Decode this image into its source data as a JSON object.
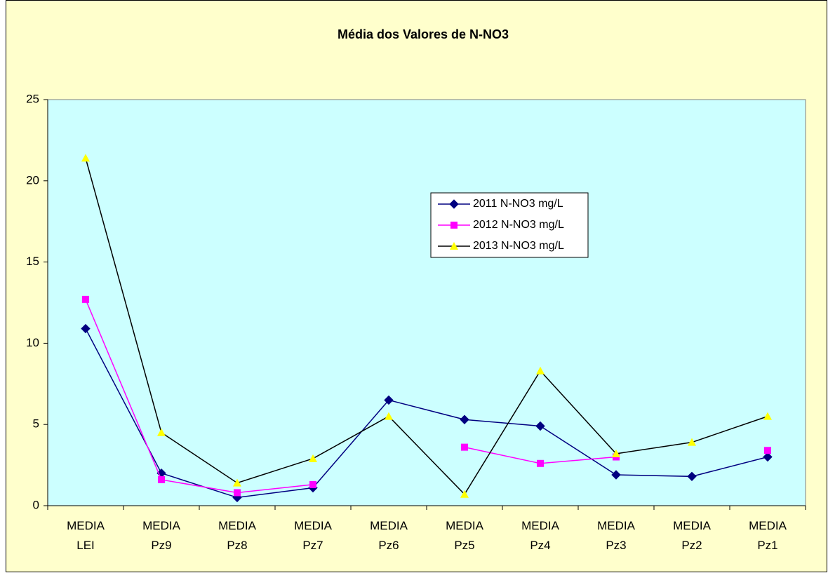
{
  "chart_data": {
    "type": "line",
    "title": "Média dos Valores de N-NO3",
    "categories": [
      "MEDIA LEI",
      "MEDIA Pz9",
      "MEDIA Pz8",
      "MEDIA Pz7",
      "MEDIA Pz6",
      "MEDIA Pz5",
      "MEDIA Pz4",
      "MEDIA Pz3",
      "MEDIA Pz2",
      "MEDIA Pz1"
    ],
    "series": [
      {
        "name": "2011 N-NO3 mg/L",
        "color": "#000080",
        "marker_color": "#000080",
        "marker": "diamond",
        "values": [
          10.9,
          2.0,
          0.5,
          1.1,
          6.5,
          5.3,
          4.9,
          1.9,
          1.8,
          3.0
        ]
      },
      {
        "name": "2012 N-NO3 mg/L",
        "color": "#FF00FF",
        "marker_color": "#FF00FF",
        "marker": "square",
        "values": [
          12.7,
          1.6,
          0.8,
          1.3,
          null,
          3.6,
          2.6,
          3.0,
          null,
          3.4
        ]
      },
      {
        "name": "2013 N-NO3 mg/L",
        "color": "#000000",
        "marker_color": "#FFFF00",
        "marker": "triangle",
        "values": [
          21.4,
          4.5,
          1.4,
          2.9,
          5.5,
          0.7,
          8.3,
          3.2,
          3.9,
          5.5
        ]
      }
    ],
    "ylim": [
      0,
      25
    ],
    "yticks": [
      0,
      5,
      10,
      15,
      20,
      25
    ],
    "grid": false,
    "background": "#FFFFCC",
    "plot_background": "#CCFFFF"
  }
}
